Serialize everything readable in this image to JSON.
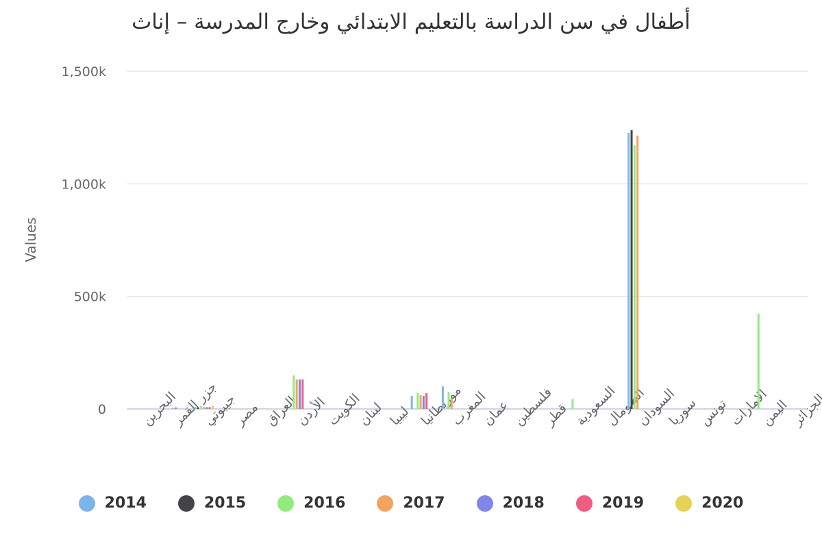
{
  "chart_data": {
    "type": "bar",
    "title": "أطفال في سن الدراسة بالتعليم الابتدائي وخارج المدرسة – إناث",
    "xlabel": "",
    "ylabel": "Values",
    "ylim": [
      0,
      1500000
    ],
    "yticks": [
      0,
      500000,
      1000000,
      1500000
    ],
    "ytick_labels": [
      "0",
      "500k",
      "1,000k",
      "1,500k"
    ],
    "grid": true,
    "legend_position": "bottom",
    "categories": [
      "البحرين",
      "جزر القمر",
      "جيبوتي",
      "مصر",
      "العراق",
      "الأردن",
      "الكويت",
      "لبنان",
      "ليبيا",
      "موريطانيا",
      "المغرب",
      "عمان",
      "فلسطين",
      "قطر",
      "السعودية",
      "الصومال",
      "السودان",
      "سوريا",
      "تونس",
      "الامارات",
      "اليمن",
      "الجزائر"
    ],
    "series": [
      {
        "name": "2014",
        "color": "#7cb5ec",
        "values": [
          0,
          0,
          8000,
          0,
          0,
          0,
          0,
          0,
          0,
          58000,
          100000,
          0,
          0,
          0,
          0,
          0,
          1226000,
          0,
          0,
          0,
          0,
          0
        ]
      },
      {
        "name": "2015",
        "color": "#434348",
        "values": [
          0,
          0,
          8000,
          0,
          0,
          0,
          0,
          0,
          0,
          0,
          0,
          0,
          0,
          0,
          0,
          0,
          1238000,
          0,
          0,
          0,
          0,
          0
        ]
      },
      {
        "name": "2016",
        "color": "#90ed7d",
        "values": [
          0,
          0,
          12000,
          0,
          0,
          149000,
          0,
          0,
          0,
          70000,
          76000,
          0,
          0,
          0,
          43000,
          0,
          1171000,
          0,
          0,
          0,
          423000,
          0
        ]
      },
      {
        "name": "2017",
        "color": "#f7a35c",
        "values": [
          0,
          5000,
          8000,
          0,
          0,
          131000,
          0,
          0,
          0,
          61000,
          46000,
          0,
          0,
          0,
          0,
          0,
          1214000,
          0,
          0,
          0,
          0,
          0
        ]
      },
      {
        "name": "2018",
        "color": "#8085e9",
        "values": [
          0,
          7000,
          8000,
          0,
          0,
          131000,
          0,
          0,
          0,
          58000,
          0,
          0,
          0,
          0,
          0,
          0,
          0,
          0,
          0,
          0,
          0,
          0
        ]
      },
      {
        "name": "2019",
        "color": "#f15c80",
        "values": [
          0,
          0,
          8000,
          0,
          0,
          131000,
          0,
          0,
          0,
          70000,
          0,
          0,
          0,
          0,
          0,
          0,
          0,
          0,
          0,
          0,
          0,
          0
        ]
      },
      {
        "name": "2020",
        "color": "#e4d354",
        "values": [
          0,
          0,
          15000,
          0,
          0,
          0,
          0,
          0,
          0,
          0,
          0,
          0,
          0,
          0,
          0,
          0,
          0,
          0,
          0,
          0,
          0,
          0
        ]
      }
    ]
  }
}
